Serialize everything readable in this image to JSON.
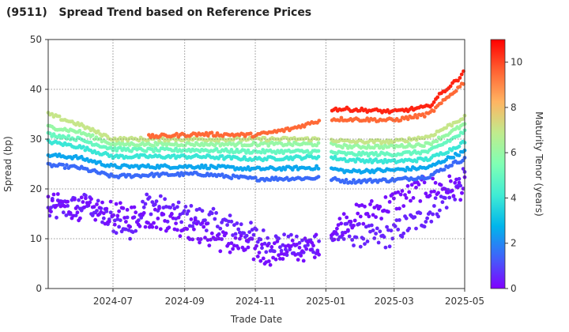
{
  "chart_data": {
    "type": "scatter",
    "title": "(9511)   Spread Trend based on Reference Prices",
    "xlabel": "Trade Date",
    "ylabel": "Spread (bp)",
    "colorbar_label": "Maturity Tenor (years)",
    "x_range": [
      "2024-05-06",
      "2025-05-01"
    ],
    "ylim": [
      0,
      50
    ],
    "y_ticks": [
      0,
      10,
      20,
      30,
      40,
      50
    ],
    "x_ticks": [
      {
        "date": "2024-07-01",
        "label": "2024-07"
      },
      {
        "date": "2024-09-01",
        "label": "2024-09"
      },
      {
        "date": "2024-11-01",
        "label": "2024-11"
      },
      {
        "date": "2025-01-01",
        "label": "2025-01"
      },
      {
        "date": "2025-03-01",
        "label": "2025-03"
      },
      {
        "date": "2025-05-01",
        "label": "2025-05"
      }
    ],
    "colorbar_range": [
      0,
      11
    ],
    "colorbar_ticks": [
      0,
      2,
      4,
      6,
      8,
      10
    ],
    "grid": true,
    "colormap": "rainbow",
    "series": [
      {
        "tenor": 0.5,
        "points": [
          [
            "2024-05-06",
            15.5
          ],
          [
            "2024-06-10",
            17
          ],
          [
            "2024-06-25",
            14
          ],
          [
            "2024-07-15",
            12
          ],
          [
            "2024-07-31",
            17.5
          ],
          [
            "2024-08-25",
            15
          ],
          [
            "2024-09-20",
            14
          ],
          [
            "2024-10-20",
            12
          ],
          [
            "2024-11-05",
            10
          ],
          [
            "2024-12-10",
            8
          ],
          [
            "2024-12-31",
            10
          ],
          [
            "2025-01-20",
            11
          ],
          [
            "2025-02-20",
            10
          ],
          [
            "2025-03-10",
            12.5
          ],
          [
            "2025-03-25",
            14
          ],
          [
            "2025-04-10",
            17
          ],
          [
            "2025-04-20",
            19
          ],
          [
            "2025-05-01",
            22
          ]
        ]
      },
      {
        "tenor": 0.2,
        "points": [
          [
            "2024-05-06",
            17
          ],
          [
            "2024-07-01",
            15
          ],
          [
            "2024-08-15",
            14
          ],
          [
            "2024-10-10",
            9
          ],
          [
            "2024-11-10",
            7
          ],
          [
            "2024-12-20",
            8
          ],
          [
            "2025-01-20",
            14
          ],
          [
            "2025-02-15",
            16
          ],
          [
            "2025-03-25",
            20
          ],
          [
            "2025-04-20",
            20.5
          ],
          [
            "2025-05-01",
            20
          ]
        ]
      },
      {
        "tenor": 1.5,
        "points": [
          [
            "2024-05-06",
            24.8
          ],
          [
            "2024-06-01",
            24.3
          ],
          [
            "2024-07-01",
            22.5
          ],
          [
            "2024-08-01",
            22.8
          ],
          [
            "2024-09-15",
            23
          ],
          [
            "2024-11-01",
            22
          ],
          [
            "2024-12-31",
            22.2
          ],
          [
            "2025-01-20",
            21.5
          ],
          [
            "2025-03-01",
            21.8
          ],
          [
            "2025-03-31",
            22.5
          ],
          [
            "2025-04-20",
            25
          ],
          [
            "2025-05-01",
            26
          ]
        ]
      },
      {
        "tenor": 2.5,
        "points": [
          [
            "2024-05-06",
            26.8
          ],
          [
            "2024-06-01",
            26.3
          ],
          [
            "2024-07-01",
            24.5
          ],
          [
            "2024-08-01",
            24.5
          ],
          [
            "2024-09-15",
            24.5
          ],
          [
            "2024-11-01",
            24
          ],
          [
            "2024-12-31",
            24.3
          ],
          [
            "2025-01-20",
            23.5
          ],
          [
            "2025-03-01",
            23.8
          ],
          [
            "2025-03-31",
            24.3
          ],
          [
            "2025-04-20",
            26.5
          ],
          [
            "2025-05-01",
            27.5
          ]
        ]
      },
      {
        "tenor": 4,
        "points": [
          [
            "2024-05-06",
            29.5
          ],
          [
            "2024-06-01",
            28.5
          ],
          [
            "2024-07-01",
            26.5
          ],
          [
            "2024-08-01",
            26.5
          ],
          [
            "2024-09-15",
            26.5
          ],
          [
            "2024-11-01",
            26
          ],
          [
            "2024-12-31",
            26.5
          ],
          [
            "2025-01-20",
            25.8
          ],
          [
            "2025-03-01",
            25.5
          ],
          [
            "2025-03-31",
            26
          ],
          [
            "2025-04-20",
            28
          ],
          [
            "2025-05-01",
            29.5
          ]
        ]
      },
      {
        "tenor": 5,
        "points": [
          [
            "2024-05-06",
            31
          ],
          [
            "2024-06-01",
            30
          ],
          [
            "2024-07-01",
            28
          ],
          [
            "2024-08-01",
            27.8
          ],
          [
            "2024-09-15",
            27.8
          ],
          [
            "2024-11-01",
            27.5
          ],
          [
            "2024-12-31",
            27.5
          ],
          [
            "2025-01-20",
            27
          ],
          [
            "2025-03-01",
            27
          ],
          [
            "2025-03-31",
            27.5
          ],
          [
            "2025-04-20",
            30
          ],
          [
            "2025-05-01",
            31.5
          ]
        ]
      },
      {
        "tenor": 6,
        "points": [
          [
            "2024-05-06",
            32.5
          ],
          [
            "2024-06-01",
            31.5
          ],
          [
            "2024-07-01",
            29
          ],
          [
            "2024-08-01",
            29
          ],
          [
            "2024-09-15",
            29
          ],
          [
            "2024-11-01",
            29
          ],
          [
            "2024-12-31",
            29
          ],
          [
            "2025-01-20",
            28.5
          ],
          [
            "2025-03-01",
            28.5
          ],
          [
            "2025-03-31",
            29
          ],
          [
            "2025-04-20",
            31.5
          ],
          [
            "2025-05-01",
            33
          ]
        ]
      },
      {
        "tenor": 7,
        "points": [
          [
            "2024-05-06",
            35
          ],
          [
            "2024-06-01",
            33
          ],
          [
            "2024-07-01",
            30
          ],
          [
            "2024-08-01",
            30
          ],
          [
            "2024-09-15",
            30
          ],
          [
            "2024-11-01",
            30
          ],
          [
            "2024-12-31",
            30
          ],
          [
            "2025-01-20",
            29.5
          ],
          [
            "2025-03-01",
            29.5
          ],
          [
            "2025-03-31",
            30.5
          ],
          [
            "2025-04-20",
            33
          ],
          [
            "2025-05-01",
            34.5
          ]
        ]
      },
      {
        "tenor": 9.5,
        "points": [
          [
            "2024-08-01",
            30.5
          ],
          [
            "2024-09-15",
            31
          ],
          [
            "2024-11-01",
            30.8
          ],
          [
            "2024-12-01",
            32
          ],
          [
            "2024-12-31",
            34
          ],
          [
            "2025-01-20",
            34
          ],
          [
            "2025-03-01",
            33.8
          ],
          [
            "2025-03-31",
            35
          ],
          [
            "2025-04-10",
            37
          ],
          [
            "2025-05-01",
            41.5
          ]
        ]
      },
      {
        "tenor": 10.5,
        "points": [
          [
            "2024-12-31",
            36
          ],
          [
            "2025-01-20",
            36
          ],
          [
            "2025-03-01",
            35.5
          ],
          [
            "2025-03-31",
            36.5
          ],
          [
            "2025-04-10",
            39
          ],
          [
            "2025-04-25",
            42
          ],
          [
            "2025-05-01",
            44
          ]
        ]
      }
    ]
  }
}
